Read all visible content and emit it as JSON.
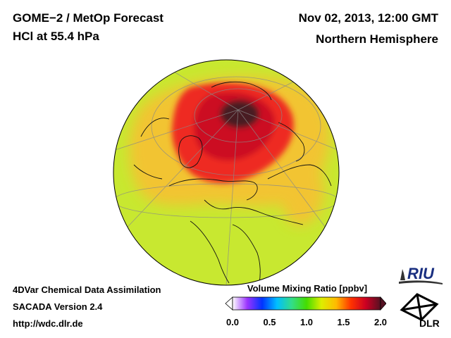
{
  "header": {
    "title": "GOME−2 / MetOp Forecast",
    "subtitle": "HCl at 55.4 hPa",
    "datetime": "Nov 02, 2013, 12:00 GMT",
    "region": "Northern Hemisphere"
  },
  "footer": {
    "line1": "4DVar Chemical Data Assimilation",
    "line2": "SACADA Version 2.4",
    "url": "http://wdc.dlr.de"
  },
  "legend": {
    "title": "Volume Mixing Ratio [ppbv]",
    "min": 0.0,
    "max": 2.0,
    "ticks": [
      "0.0",
      "0.5",
      "1.0",
      "1.5",
      "2.0"
    ],
    "colors": [
      "#ffffff",
      "#9a33ff",
      "#0033ff",
      "#00bfff",
      "#33dd88",
      "#44dd00",
      "#ddee00",
      "#ffbb00",
      "#ff3300",
      "#cc0022",
      "#551122"
    ]
  },
  "map": {
    "projection": "orthographic",
    "field": "HCl volume mixing ratio",
    "background_color": "#c8e830",
    "zones": [
      {
        "name": "tropical-band",
        "value": 0.9,
        "color": "#c8e830"
      },
      {
        "name": "midlatitude-ring",
        "value": 1.25,
        "color": "#f2c430"
      },
      {
        "name": "vortex-edge",
        "value": 1.5,
        "color": "#ee2a22"
      },
      {
        "name": "vortex-core",
        "value": 1.8,
        "color": "#cc0f24"
      },
      {
        "name": "pole-max",
        "value": 2.0,
        "color": "#4a1a22"
      }
    ]
  },
  "logos": {
    "riu": "RIU",
    "dlr": "DLR"
  }
}
